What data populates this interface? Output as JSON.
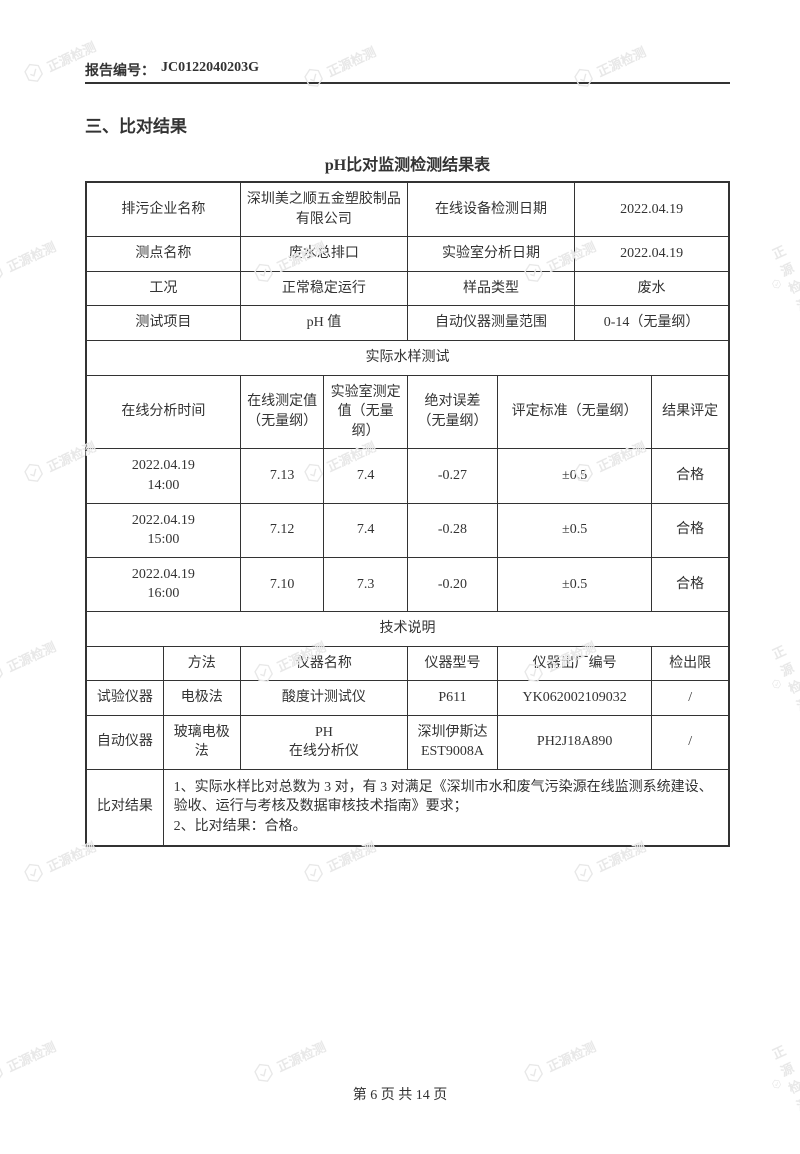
{
  "watermark_text": "正源检测",
  "header": {
    "label": "报告编号：",
    "number": "JC0122040203G"
  },
  "section_title": "三、比对结果",
  "table_title": "pH比对监测检测结果表",
  "info": {
    "r1": {
      "l1": "排污企业名称",
      "v1": "深圳美之顺五金塑胶制品有限公司",
      "l2": "在线设备检测日期",
      "v2": "2022.04.19"
    },
    "r2": {
      "l1": "测点名称",
      "v1": "废水总排口",
      "l2": "实验室分析日期",
      "v2": "2022.04.19"
    },
    "r3": {
      "l1": "工况",
      "v1": "正常稳定运行",
      "l2": "样品类型",
      "v2": "废水"
    },
    "r4": {
      "l1": "测试项目",
      "v1": "pH 值",
      "l2": "自动仪器测量范围",
      "v2": "0-14（无量纲）"
    }
  },
  "section1_title": "实际水样测试",
  "test_headers": {
    "h1": "在线分析时间",
    "h2": "在线测定值（无量纲）",
    "h3": "实验室测定值（无量纲）",
    "h4": "绝对误差（无量纲）",
    "h5": "评定标准（无量纲）",
    "h6": "结果评定"
  },
  "tests": [
    {
      "time": "2022.04.19\n14:00",
      "online": "7.13",
      "lab": "7.4",
      "err": "-0.27",
      "std": "±0.5",
      "res": "合格"
    },
    {
      "time": "2022.04.19\n15:00",
      "online": "7.12",
      "lab": "7.4",
      "err": "-0.28",
      "std": "±0.5",
      "res": "合格"
    },
    {
      "time": "2022.04.19\n16:00",
      "online": "7.10",
      "lab": "7.3",
      "err": "-0.20",
      "std": "±0.5",
      "res": "合格"
    }
  ],
  "section2_title": "技术说明",
  "tech_headers": {
    "h1": "方法",
    "h2": "仪器名称",
    "h3": "仪器型号",
    "h4": "仪器出厂编号",
    "h5": "检出限"
  },
  "tech": [
    {
      "label": "试验仪器",
      "method": "电极法",
      "name": "酸度计测试仪",
      "model": "P611",
      "serial": "YK062002109032",
      "limit": "/"
    },
    {
      "label": "自动仪器",
      "method": "玻璃电极法",
      "name": "PH\n在线分析仪",
      "model": "深圳伊斯达\nEST9008A",
      "serial": "PH2J18A890",
      "limit": "/"
    }
  ],
  "conclusion": {
    "label": "比对结果",
    "text": "1、实际水样比对总数为 3 对，有 3 对满足《深圳市水和废气污染源在线监测系统建设、验收、运行与考核及数据审核技术指南》要求；\n2、比对结果：合格。"
  },
  "footer": "第 6 页 共 14 页",
  "colors": {
    "text": "#333333",
    "border": "#333333",
    "watermark": "#e8e8e8",
    "background": "#ffffff"
  }
}
